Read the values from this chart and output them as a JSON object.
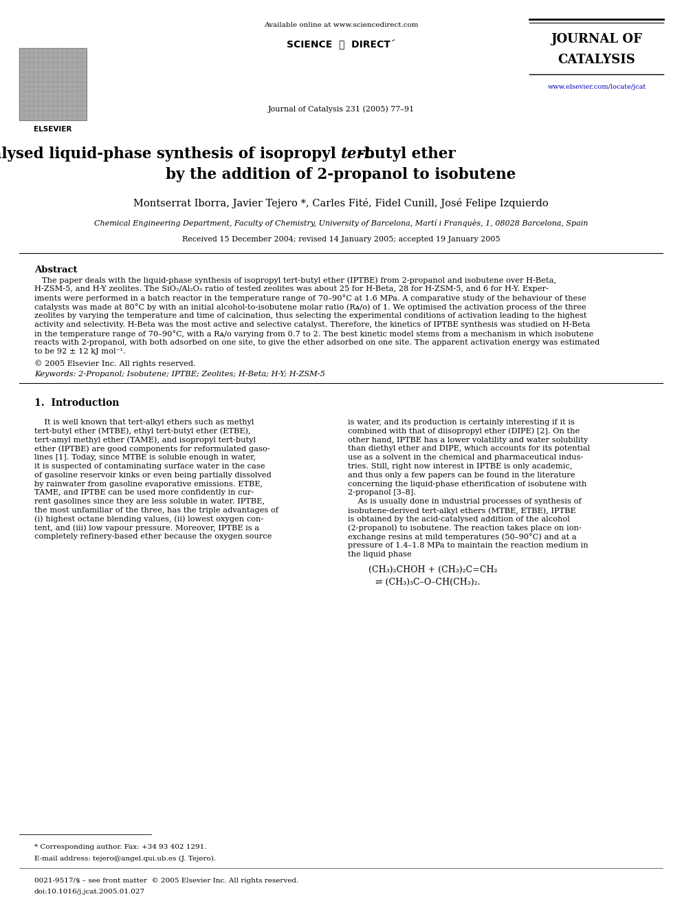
{
  "background": "#ffffff",
  "page_width": 9.92,
  "page_height": 13.23,
  "dpi": 100,
  "header": {
    "available_online": "Available online at www.sciencedirect.com",
    "journal_name_line1": "JOURNAL OF",
    "journal_name_line2": "CATALYSIS",
    "journal_ref": "Journal of Catalysis 231 (2005) 77–91",
    "url": "www.elsevier.com/locate/jcat",
    "url_color": "#0000bb"
  },
  "title_line1_pre": "Zeolite-catalysed liquid-phase synthesis of isopropyl ",
  "title_line1_italic": "tert",
  "title_line1_post": "-butyl ether",
  "title_line2": "by the addition of 2-propanol to isobutene",
  "authors": "Montserrat Iborra, Javier Tejero *, Carles Fité, Fidel Cunill, José Felipe Izquierdo",
  "affiliation": "Chemical Engineering Department, Faculty of Chemistry, University of Barcelona, Martí i Franquès, 1, 08028 Barcelona, Spain",
  "received": "Received 15 December 2004; revised 14 January 2005; accepted 19 January 2005",
  "abstract_title": "Abstract",
  "abstract_lines": [
    "   The paper deals with the liquid-phase synthesis of isopropyl tert-butyl ether (IPTBE) from 2-propanol and isobutene over H-Beta,",
    "H-ZSM-5, and H-Y zeolites. The SiO₂/Al₂O₃ ratio of tested zeolites was about 25 for H-Beta, 28 for H-ZSM-5, and 6 for H-Y. Exper-",
    "iments were performed in a batch reactor in the temperature range of 70–90°C at 1.6 MPa. A comparative study of the behaviour of these",
    "catalysts was made at 80°C by with an initial alcohol-to-isobutene molar ratio (Rᴀ/ᴏ) of 1. We optimised the activation process of the three",
    "zeolites by varying the temperature and time of calcination, thus selecting the experimental conditions of activation leading to the highest",
    "activity and selectivity. H-Beta was the most active and selective catalyst. Therefore, the kinetics of IPTBE synthesis was studied on H-Beta",
    "in the temperature range of 70–90°C, with a Rᴀ/ᴏ varying from 0.7 to 2. The best kinetic model stems from a mechanism in which isobutene",
    "reacts with 2-propanol, with both adsorbed on one site, to give the ether adsorbed on one site. The apparent activation energy was estimated",
    "to be 92 ± 12 kJ mol⁻¹."
  ],
  "copyright": "© 2005 Elsevier Inc. All rights reserved.",
  "keywords": "Keywords: 2-Propanol; Isobutene; IPTBE; Zeolites; H-Beta; H-Y; H-ZSM-5",
  "intro_heading": "1.  Introduction",
  "intro_col1_lines": [
    "    It is well known that tert-alkyl ethers such as methyl",
    "tert-butyl ether (MTBE), ethyl tert-butyl ether (ETBE),",
    "tert-amyl methyl ether (TAME), and isopropyl tert-butyl",
    "ether (IPTBE) are good components for reformulated gaso-",
    "lines [1]. Today, since MTBE is soluble enough in water,",
    "it is suspected of contaminating surface water in the case",
    "of gasoline reservoir kinks or even being partially dissolved",
    "by rainwater from gasoline evaporative emissions. ETBE,",
    "TAME, and IPTBE can be used more confidently in cur-",
    "rent gasolines since they are less soluble in water. IPTBE,",
    "the most unfamiliar of the three, has the triple advantages of",
    "(i) highest octane blending values, (ii) lowest oxygen con-",
    "tent, and (iii) low vapour pressure. Moreover, IPTBE is a",
    "completely refinery-based ether because the oxygen source"
  ],
  "intro_col2_lines": [
    "is water, and its production is certainly interesting if it is",
    "combined with that of diisopropyl ether (DIPE) [2]. On the",
    "other hand, IPTBE has a lower volatility and water solubility",
    "than diethyl ether and DIPE, which accounts for its potential",
    "use as a solvent in the chemical and pharmaceutical indus-",
    "tries. Still, right now interest in IPTBE is only academic,",
    "and thus only a few papers can be found in the literature",
    "concerning the liquid-phase etherification of isobutene with",
    "2-propanol [3–8].",
    "    As is usually done in industrial processes of synthesis of",
    "isobutene-derived tert-alkyl ethers (MTBE, ETBE), IPTBE",
    "is obtained by the acid-catalysed addition of the alcohol",
    "(2-propanol) to isobutene. The reaction takes place on ion-",
    "exchange resins at mild temperatures (50–90°C) and at a",
    "pressure of 1.4–1.8 MPa to maintain the reaction medium in",
    "the liquid phase"
  ],
  "reaction_eq1": "(CH₃)₂CHOH + (CH₃)₂C=CH₂",
  "reaction_eq2": "⇌ (CH₃)₃C–O–CH(CH₃)₂.",
  "footer_star": "* Corresponding author. Fax: +34 93 402 1291.",
  "footer_email": "E-mail address: tejero@angel.qui.ub.es (J. Tejero).",
  "footer_issn": "0021-9517/$ – see front matter  © 2005 Elsevier Inc. All rights reserved.",
  "footer_doi": "doi:10.1016/j.jcat.2005.01.027"
}
